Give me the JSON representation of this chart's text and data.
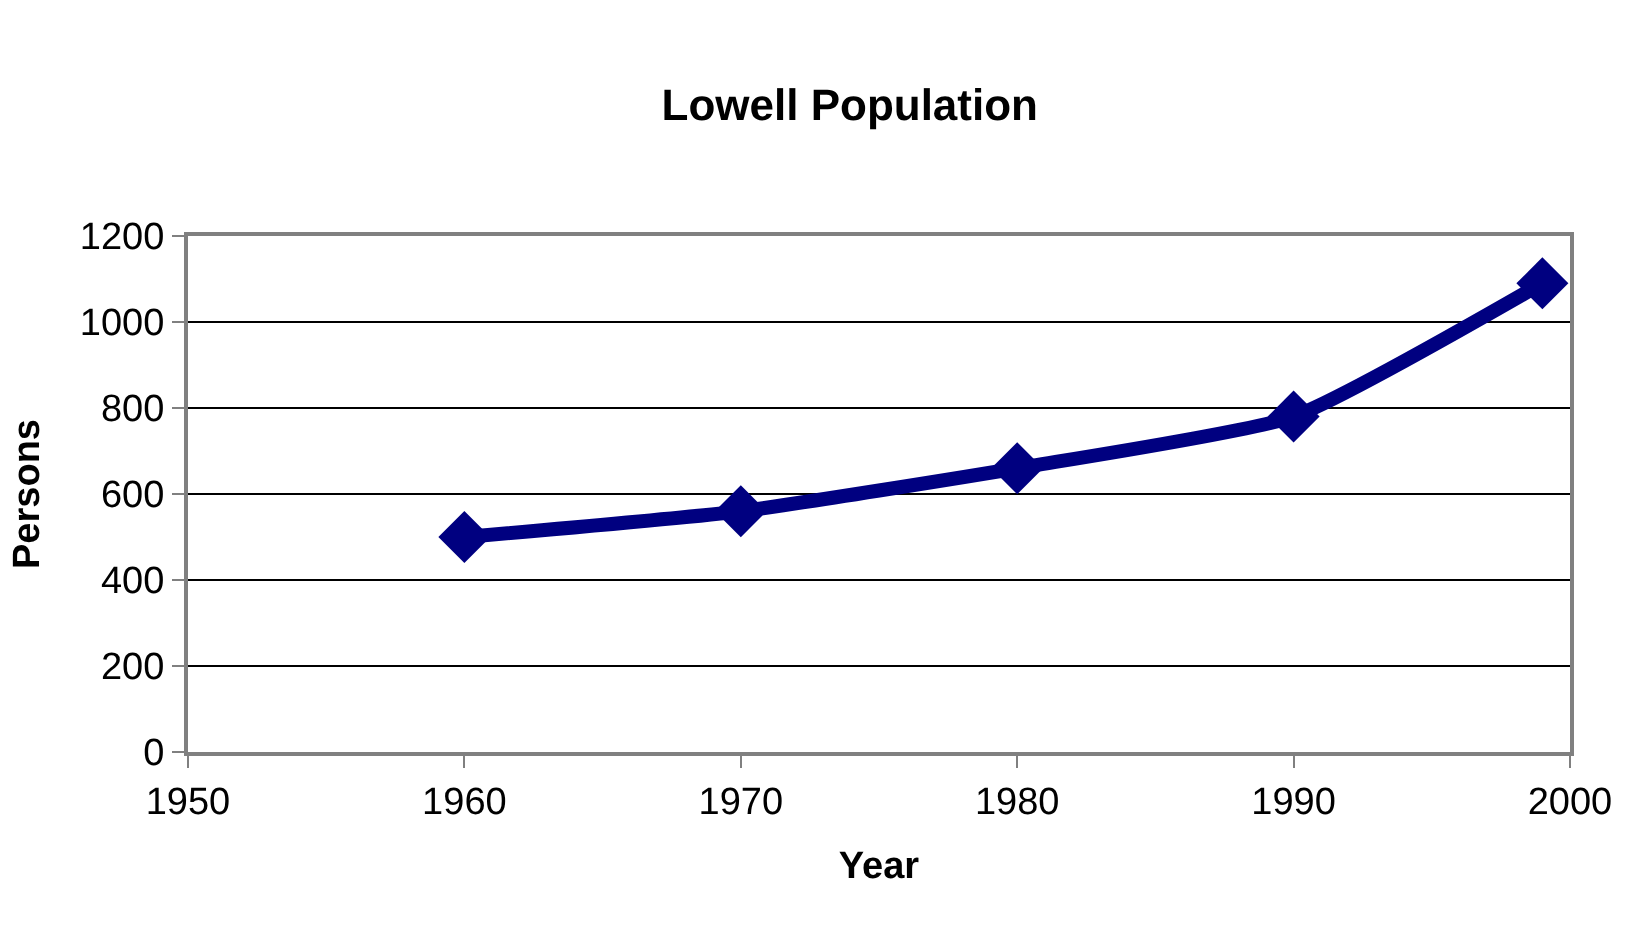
{
  "chart_data": {
    "type": "line",
    "title": "Lowell Population",
    "xlabel": "Year",
    "ylabel": "Persons",
    "x": [
      1960,
      1970,
      1980,
      1990,
      1999
    ],
    "series": [
      {
        "color": "#000080",
        "values": [
          500,
          560,
          660,
          780,
          1090
        ]
      }
    ],
    "xlim": [
      1950,
      2000
    ],
    "xticks": [
      1950,
      1960,
      1970,
      1980,
      1990,
      2000
    ],
    "ylim": [
      0,
      1200
    ],
    "yticks": [
      0,
      200,
      400,
      600,
      800,
      1000,
      1200
    ],
    "grid": "y",
    "marker": "diamond",
    "line_style": "solid"
  }
}
